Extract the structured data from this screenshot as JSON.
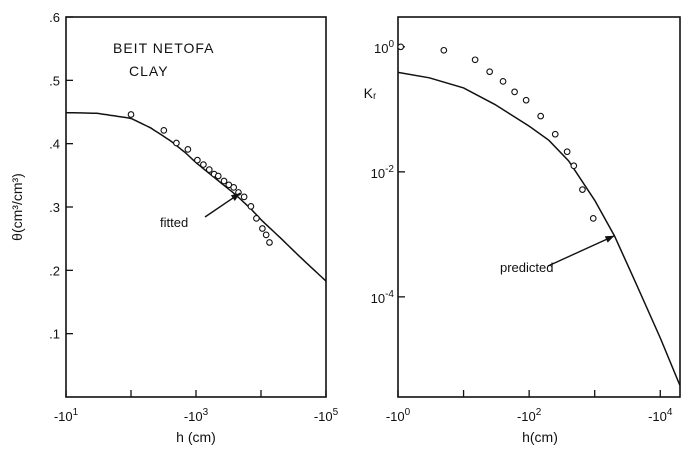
{
  "chart_data": [
    {
      "type": "line",
      "title": "",
      "annotation_lines": [
        "BEIT NETOFA",
        "CLAY"
      ],
      "xlabel": "h (cm)",
      "ylabel": "θ(cm³/cm³)",
      "x_scale": "log, negative pressure head (increasing suction to the right)",
      "xlim": [
        -10,
        -100000
      ],
      "ylim": [
        0,
        0.6
      ],
      "x_ticks": [
        {
          "value": -10,
          "label": "-10",
          "sup": "1"
        },
        {
          "value": -1000,
          "label": "-10",
          "sup": "3"
        },
        {
          "value": -100000,
          "label": "-10",
          "sup": "5"
        }
      ],
      "y_ticks": [
        {
          "value": 0.1,
          "label": ".1"
        },
        {
          "value": 0.2,
          "label": ".2"
        },
        {
          "value": 0.3,
          "label": ".3"
        },
        {
          "value": 0.4,
          "label": ".4"
        },
        {
          "value": 0.5,
          "label": ".5"
        },
        {
          "value": 0.6,
          "label": ".6"
        }
      ],
      "grid": false,
      "series": [
        {
          "name": "fitted",
          "style": "line",
          "points": [
            [
              -10,
              0.449
            ],
            [
              -30,
              0.448
            ],
            [
              -100,
              0.44
            ],
            [
              -200,
              0.425
            ],
            [
              -400,
              0.405
            ],
            [
              -700,
              0.385
            ],
            [
              -1000,
              0.37
            ],
            [
              -2000,
              0.345
            ],
            [
              -4000,
              0.32
            ],
            [
              -7000,
              0.297
            ],
            [
              -10000,
              0.28
            ],
            [
              -20000,
              0.251
            ],
            [
              -40000,
              0.221
            ],
            [
              -100000,
              0.183
            ]
          ]
        },
        {
          "style": "markers",
          "points": [
            [
              -100,
              0.446
            ],
            [
              -320,
              0.421
            ],
            [
              -500,
              0.401
            ],
            [
              -750,
              0.391
            ],
            [
              -1050,
              0.374
            ],
            [
              -1300,
              0.367
            ],
            [
              -1600,
              0.359
            ],
            [
              -1900,
              0.352
            ],
            [
              -2200,
              0.349
            ],
            [
              -2700,
              0.341
            ],
            [
              -3200,
              0.335
            ],
            [
              -3800,
              0.331
            ],
            [
              -4500,
              0.323
            ],
            [
              -5500,
              0.316
            ],
            [
              -7000,
              0.301
            ],
            [
              -8500,
              0.282
            ],
            [
              -10500,
              0.266
            ],
            [
              -12000,
              0.256
            ],
            [
              -13500,
              0.244
            ]
          ]
        }
      ],
      "annotation": {
        "text": "fitted",
        "points_to": [
          -4800,
          0.322
        ]
      }
    },
    {
      "type": "line",
      "title": "",
      "xlabel": "h(cm)",
      "ylabel": "Kᵣ",
      "x_scale": "log, negative pressure head",
      "y_scale": "log",
      "xlim": [
        -1,
        -20000
      ],
      "ylim": [
        2.5e-06,
        3
      ],
      "x_ticks": [
        {
          "value": -1,
          "label": "-10",
          "sup": "0"
        },
        {
          "value": -100,
          "label": "-10",
          "sup": "2"
        },
        {
          "value": -10000,
          "label": "-10",
          "sup": "4"
        }
      ],
      "y_ticks": [
        {
          "value": 1,
          "label": "10",
          "sup": "0"
        },
        {
          "value": 0.01,
          "label": "10",
          "sup": "-2"
        },
        {
          "value": 0.0001,
          "label": "10",
          "sup": "-4"
        }
      ],
      "grid": false,
      "series": [
        {
          "name": "predicted",
          "style": "line",
          "points": [
            [
              -1,
              0.39
            ],
            [
              -3,
              0.32
            ],
            [
              -10,
              0.22
            ],
            [
              -30,
              0.12
            ],
            [
              -100,
              0.054
            ],
            [
              -200,
              0.032
            ],
            [
              -400,
              0.015
            ],
            [
              -1000,
              0.0035
            ],
            [
              -2000,
              0.00095
            ],
            [
              -4000,
              0.00019
            ],
            [
              -10000,
              2.2e-05
            ],
            [
              -20000,
              3.8e-06
            ]
          ]
        },
        {
          "style": "markers",
          "points": [
            [
              -1.1,
              1.0
            ],
            [
              -5,
              0.88
            ],
            [
              -15,
              0.62
            ],
            [
              -25,
              0.4
            ],
            [
              -40,
              0.28
            ],
            [
              -60,
              0.19
            ],
            [
              -90,
              0.14
            ],
            [
              -150,
              0.078
            ],
            [
              -250,
              0.04
            ],
            [
              -380,
              0.021
            ],
            [
              -480,
              0.0125
            ],
            [
              -650,
              0.0052
            ],
            [
              -950,
              0.0018
            ]
          ]
        }
      ],
      "annotation": {
        "text": "predicted",
        "points_to": [
          -2000,
          0.00095
        ]
      }
    }
  ]
}
